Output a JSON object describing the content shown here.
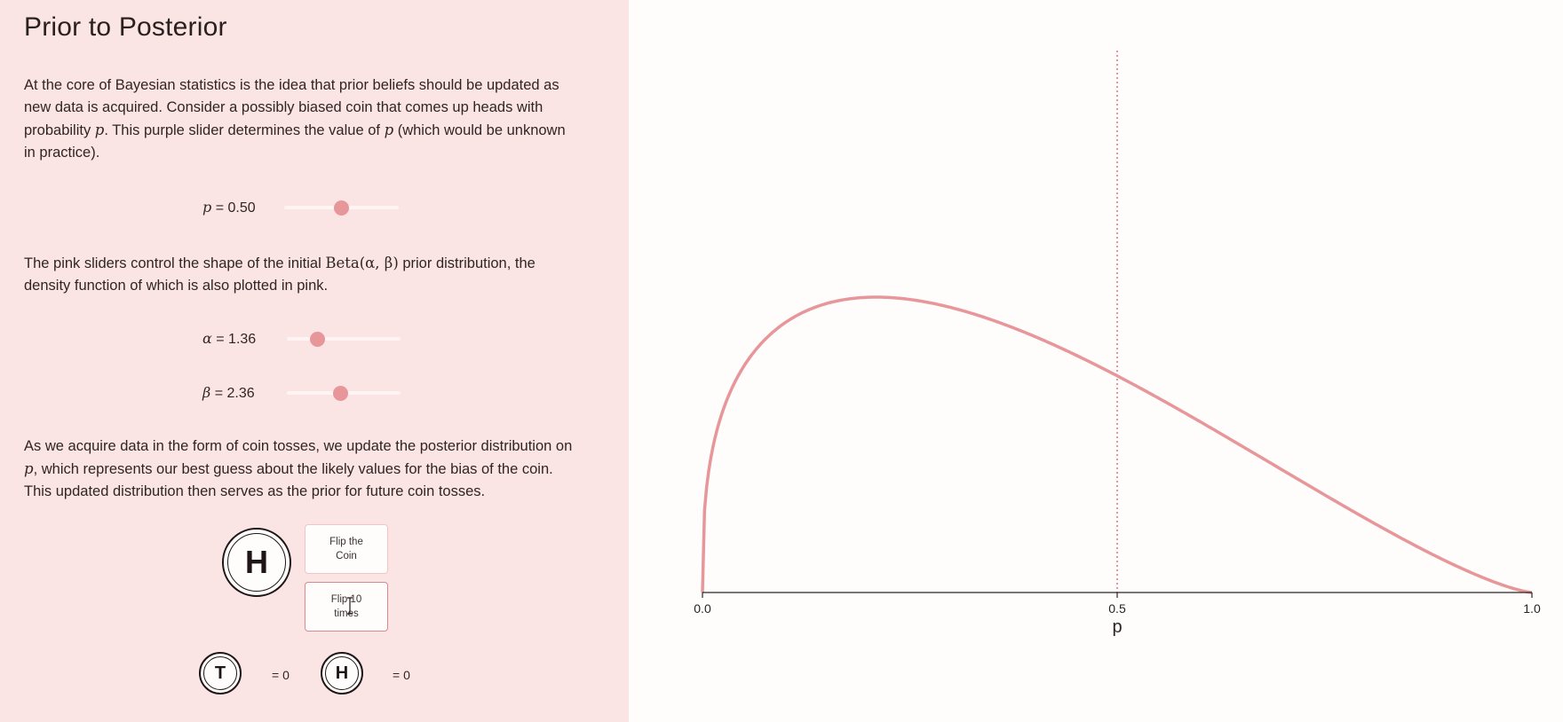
{
  "page": {
    "title": "Prior to Posterior",
    "intro": {
      "t1": "At the core of Bayesian statistics is the idea that prior beliefs should be updated as new data is acquired. Consider a possibly biased coin that comes up heads with probability ",
      "var_p": "p",
      "t2": ". This purple slider determines the value of ",
      "var_p2": "p",
      "t3": " (which would be unknown in practice)."
    },
    "prior_text": {
      "t1": "The pink sliders control the shape of the initial ",
      "beta_expr": "Beta(α, β)",
      "t2": " prior distribution, the density function of which is also plotted in pink."
    },
    "posterior_text": {
      "t1": "As we acquire data in the form of coin tosses, we update the posterior distribution on ",
      "var_p": "p",
      "t2": ", which represents our best guess about the likely values for the bias of the coin. This updated distribution then serves as the prior for future coin tosses."
    }
  },
  "sliders": {
    "p": {
      "symbol": "p",
      "label": " = 0.50",
      "value": 0.5,
      "min": 0,
      "max": 1
    },
    "alpha": {
      "symbol": "α",
      "label": " = 1.36",
      "value": 1.36,
      "min": 0,
      "max": 5
    },
    "beta": {
      "symbol": "β",
      "label": " = 2.36",
      "value": 2.36,
      "min": 0,
      "max": 5
    }
  },
  "coin": {
    "face": "H"
  },
  "buttons": {
    "flip_once": "Flip the Coin",
    "flip_ten": "Flip 10 times"
  },
  "tally": {
    "tails_symbol": "T",
    "tails_count": "= 0",
    "heads_symbol": "H",
    "heads_count": "= 0"
  },
  "colors": {
    "accent": "#e7969a",
    "panel": "#fbe5e4",
    "ink": "#1e1616"
  },
  "chart_data": {
    "type": "line",
    "series": [
      {
        "distribution": "Beta",
        "alpha": 1.36,
        "beta": 2.36
      }
    ],
    "xlim": [
      0,
      1
    ],
    "x_ticks": [
      "0.0",
      "0.5",
      "1.0"
    ],
    "xlabel": "p",
    "marker_line_x": 0.5,
    "grid": false
  }
}
